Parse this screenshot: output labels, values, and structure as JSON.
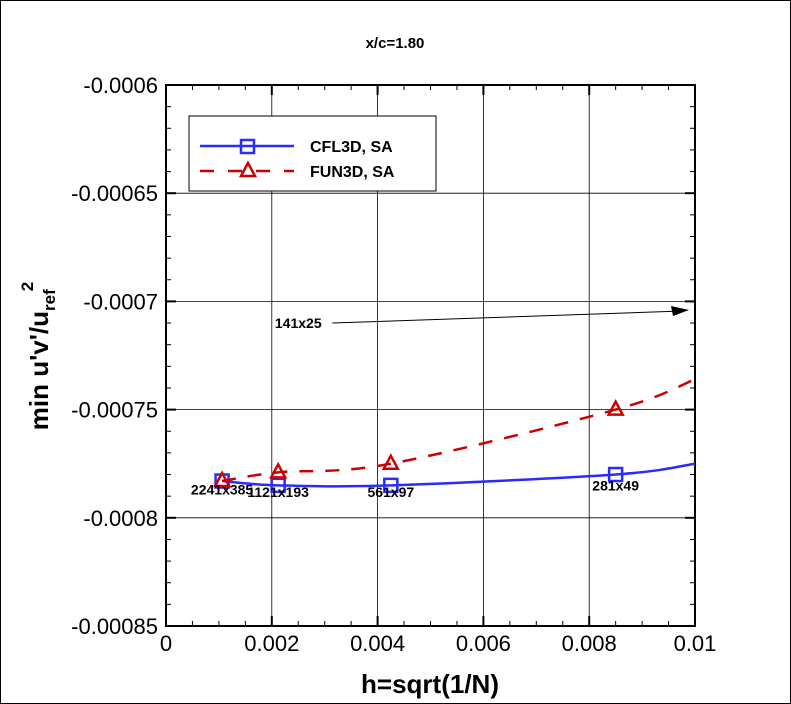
{
  "chart_data": {
    "type": "line",
    "title": "x/c=1.80",
    "xlabel": "h=sqrt(1/N)",
    "ylabel": {
      "main": "min u'v'/u",
      "subscript": "ref",
      "superscript": "2"
    },
    "xlim": [
      0,
      0.01
    ],
    "ylim": [
      -0.00085,
      -0.0006
    ],
    "xticks": [
      "0",
      "0.002",
      "0.004",
      "0.006",
      "0.008",
      "0.01"
    ],
    "yticks": [
      "-0.0006",
      "-0.00065",
      "-0.0007",
      "-0.00075",
      "-0.0008",
      "-0.00085"
    ],
    "grid": true,
    "legend_position": "top-left",
    "series": [
      {
        "name": "CFL3D, SA",
        "color": "#2b2bff",
        "style": "solid",
        "marker": "square",
        "x": [
          0.00106,
          0.00212,
          0.00425,
          0.0085
        ],
        "y": [
          -0.000783,
          -0.000785,
          -0.000785,
          -0.00078
        ],
        "extrapolated_to": {
          "x": 0.01,
          "y": -0.000775
        }
      },
      {
        "name": "FUN3D, SA",
        "color": "#cc0000",
        "style": "dashed",
        "marker": "triangle",
        "x": [
          0.00106,
          0.00212,
          0.00425,
          0.0085
        ],
        "y": [
          -0.000783,
          -0.000779,
          -0.000775,
          -0.00075
        ],
        "extrapolated_to": {
          "x": 0.01,
          "y": -0.000736
        }
      }
    ],
    "annotations": [
      {
        "text": "2241x385",
        "x": 0.00106,
        "y": -0.000787
      },
      {
        "text": "1121x193",
        "x": 0.00212,
        "y": -0.000788
      },
      {
        "text": "561x97",
        "x": 0.00425,
        "y": -0.000788
      },
      {
        "text": "281x49",
        "x": 0.0085,
        "y": -0.000785
      },
      {
        "text": "141x25",
        "x": 0.0025,
        "y": -0.00071,
        "arrow_to": {
          "x": 0.01,
          "y": -0.000704
        }
      }
    ]
  }
}
